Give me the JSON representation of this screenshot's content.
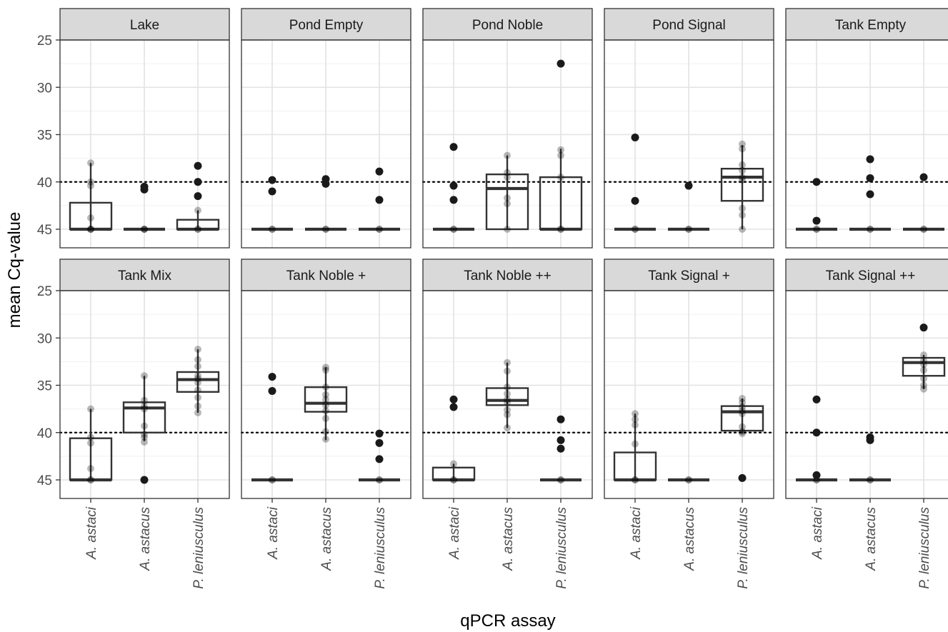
{
  "chart_data": {
    "type": "box",
    "xlabel": "qPCR assay",
    "ylabel": "mean Cq-value",
    "categories": [
      "A. astaci",
      "A. astacus",
      "P. leniusculus"
    ],
    "ylim": [
      23,
      47
    ],
    "y_reversed": true,
    "yticks": [
      25,
      30,
      35,
      40,
      45
    ],
    "threshold": 40,
    "grid": true,
    "panels": [
      {
        "title": "Lake",
        "groups": [
          {
            "box": [
              42.2,
              45,
              45,
              45,
              45
            ],
            "whisker": [
              38,
              45
            ],
            "points": [
              45,
              45,
              45,
              38,
              40,
              40.4,
              43.8
            ],
            "outliers": []
          },
          {
            "box": [
              45,
              45,
              45,
              45,
              45
            ],
            "whisker": [
              45,
              45
            ],
            "points": [
              45,
              45,
              45
            ],
            "outliers": [
              40.5,
              40.8
            ]
          },
          {
            "box": [
              44,
              45,
              45,
              45,
              45
            ],
            "whisker": [
              43,
              45
            ],
            "points": [
              45,
              45,
              43
            ],
            "outliers": [
              38.3,
              40,
              41.5
            ]
          }
        ]
      },
      {
        "title": "Pond Empty",
        "groups": [
          {
            "box": [
              45,
              45,
              45,
              45,
              45
            ],
            "whisker": [
              45,
              45
            ],
            "points": [
              45,
              45
            ],
            "outliers": [
              39.8,
              41
            ]
          },
          {
            "box": [
              45,
              45,
              45,
              45,
              45
            ],
            "whisker": [
              45,
              45
            ],
            "points": [
              45,
              45
            ],
            "outliers": [
              39.7,
              40.2
            ]
          },
          {
            "box": [
              45,
              45,
              45,
              45,
              45
            ],
            "whisker": [
              45,
              45
            ],
            "points": [
              45,
              45
            ],
            "outliers": [
              38.9,
              41.9
            ]
          }
        ]
      },
      {
        "title": "Pond Noble",
        "groups": [
          {
            "box": [
              45,
              45,
              45,
              45,
              45
            ],
            "whisker": [
              45,
              45
            ],
            "points": [
              45,
              45
            ],
            "outliers": [
              36.3,
              40.4,
              41.9
            ]
          },
          {
            "box": [
              39.2,
              40.7,
              45,
              37.2,
              45
            ],
            "whisker": [
              37.2,
              45
            ],
            "points": [
              37.2,
              39,
              39.5,
              41.7,
              42.3,
              45
            ],
            "outliers": []
          },
          {
            "box": [
              39.5,
              45,
              45,
              36.5,
              45
            ],
            "whisker": [
              36.5,
              45
            ],
            "points": [
              36.6,
              37.2,
              39.5,
              45,
              45
            ],
            "outliers": [
              27.5
            ]
          }
        ]
      },
      {
        "title": "Pond Signal",
        "groups": [
          {
            "box": [
              45,
              45,
              45,
              45,
              45
            ],
            "whisker": [
              45,
              45
            ],
            "points": [
              45,
              45
            ],
            "outliers": [
              35.3,
              42
            ]
          },
          {
            "box": [
              45,
              45,
              45,
              45,
              45
            ],
            "whisker": [
              45,
              45
            ],
            "points": [
              45,
              45
            ],
            "outliers": [
              40.4
            ]
          },
          {
            "box": [
              38.6,
              39.5,
              42,
              36.1,
              45
            ],
            "whisker": [
              36.1,
              45
            ],
            "points": [
              36,
              36.5,
              38.2,
              38.8,
              39.5,
              39.8,
              42.8,
              43.5,
              45
            ],
            "outliers": []
          }
        ]
      },
      {
        "title": "Tank Empty",
        "groups": [
          {
            "box": [
              45,
              45,
              45,
              45,
              45
            ],
            "whisker": [
              45,
              45
            ],
            "points": [
              45,
              45
            ],
            "outliers": [
              40,
              44.1
            ]
          },
          {
            "box": [
              45,
              45,
              45,
              45,
              45
            ],
            "whisker": [
              45,
              45
            ],
            "points": [
              45,
              45
            ],
            "outliers": [
              37.6,
              39.6,
              41.3
            ]
          },
          {
            "box": [
              45,
              45,
              45,
              45,
              45
            ],
            "whisker": [
              45,
              45
            ],
            "points": [
              45,
              45
            ],
            "outliers": [
              39.5
            ]
          }
        ]
      },
      {
        "title": "Tank Mix",
        "groups": [
          {
            "box": [
              40.6,
              45,
              45,
              37.5,
              45
            ],
            "whisker": [
              37.5,
              45
            ],
            "points": [
              37.5,
              40.5,
              41.1,
              43.8,
              45,
              45
            ],
            "outliers": []
          },
          {
            "box": [
              36.8,
              37.4,
              40,
              34,
              40.9
            ],
            "whisker": [
              34,
              40.9
            ],
            "points": [
              34,
              36.6,
              37.2,
              37.5,
              39.3,
              40.2,
              40.5,
              41
            ],
            "outliers": [
              45
            ]
          },
          {
            "box": [
              33.6,
              34.4,
              35.7,
              31.2,
              37.9
            ],
            "whisker": [
              31.2,
              37.9
            ],
            "points": [
              31.2,
              32.3,
              33,
              34,
              34.3,
              34.7,
              35.5,
              36.3,
              37.2,
              37.9
            ],
            "outliers": []
          }
        ]
      },
      {
        "title": "Tank Noble +",
        "groups": [
          {
            "box": [
              45,
              45,
              45,
              45,
              45
            ],
            "whisker": [
              45,
              45
            ],
            "points": [
              45,
              45
            ],
            "outliers": [
              34.1,
              35.6
            ]
          },
          {
            "box": [
              35.2,
              36.9,
              37.8,
              33.1,
              40.8
            ],
            "whisker": [
              33.1,
              40.8
            ],
            "points": [
              33.1,
              33.4,
              35.2,
              36,
              36.5,
              37.1,
              37.7,
              38.5,
              39.9,
              40.7
            ],
            "outliers": []
          },
          {
            "box": [
              45,
              45,
              45,
              45,
              45
            ],
            "whisker": [
              45,
              45
            ],
            "points": [
              45,
              45
            ],
            "outliers": [
              40.1,
              41.1,
              42.8
            ]
          }
        ]
      },
      {
        "title": "Tank Noble ++",
        "groups": [
          {
            "box": [
              43.7,
              45,
              45,
              43.3,
              45
            ],
            "whisker": [
              43.3,
              45
            ],
            "points": [
              43.3,
              45,
              45
            ],
            "outliers": [
              36.5,
              37.3
            ]
          },
          {
            "box": [
              35.3,
              36.6,
              37.1,
              32.6,
              39.5
            ],
            "whisker": [
              32.6,
              39.5
            ],
            "points": [
              32.6,
              33.5,
              35.2,
              35.9,
              36.5,
              36.8,
              37.6,
              38.1,
              39.5
            ],
            "outliers": []
          },
          {
            "box": [
              45,
              45,
              45,
              45,
              45
            ],
            "whisker": [
              45,
              45
            ],
            "points": [
              45,
              45
            ],
            "outliers": [
              38.6,
              40.8,
              41.7
            ]
          }
        ]
      },
      {
        "title": "Tank Signal +",
        "groups": [
          {
            "box": [
              42.1,
              45,
              45,
              38,
              45
            ],
            "whisker": [
              38,
              45
            ],
            "points": [
              38,
              38.6,
              39.2,
              41.2,
              45,
              45
            ],
            "outliers": []
          },
          {
            "box": [
              45,
              45,
              45,
              45,
              45
            ],
            "whisker": [
              45,
              45
            ],
            "points": [
              45,
              45
            ],
            "outliers": []
          },
          {
            "box": [
              37.2,
              37.8,
              39.8,
              36.4,
              40.1
            ],
            "whisker": [
              36.4,
              40.1
            ],
            "points": [
              36.4,
              36.8,
              37.3,
              37.7,
              38,
              39.4,
              39.9,
              40.1
            ],
            "outliers": [
              44.8
            ]
          }
        ]
      },
      {
        "title": "Tank Signal ++",
        "groups": [
          {
            "box": [
              45,
              45,
              45,
              45,
              45
            ],
            "whisker": [
              45,
              45
            ],
            "points": [
              45,
              45
            ],
            "outliers": [
              36.5,
              40,
              44.5
            ]
          },
          {
            "box": [
              45,
              45,
              45,
              45,
              45
            ],
            "whisker": [
              45,
              45
            ],
            "points": [
              45,
              45
            ],
            "outliers": [
              40.5,
              40.8
            ]
          },
          {
            "box": [
              32.1,
              32.6,
              34,
              31.8,
              35.4
            ],
            "whisker": [
              31.8,
              35.4
            ],
            "points": [
              31.8,
              32.4,
              32.8,
              33.4,
              34.3,
              35,
              35.4
            ],
            "outliers": [
              28.9
            ]
          }
        ]
      }
    ]
  }
}
